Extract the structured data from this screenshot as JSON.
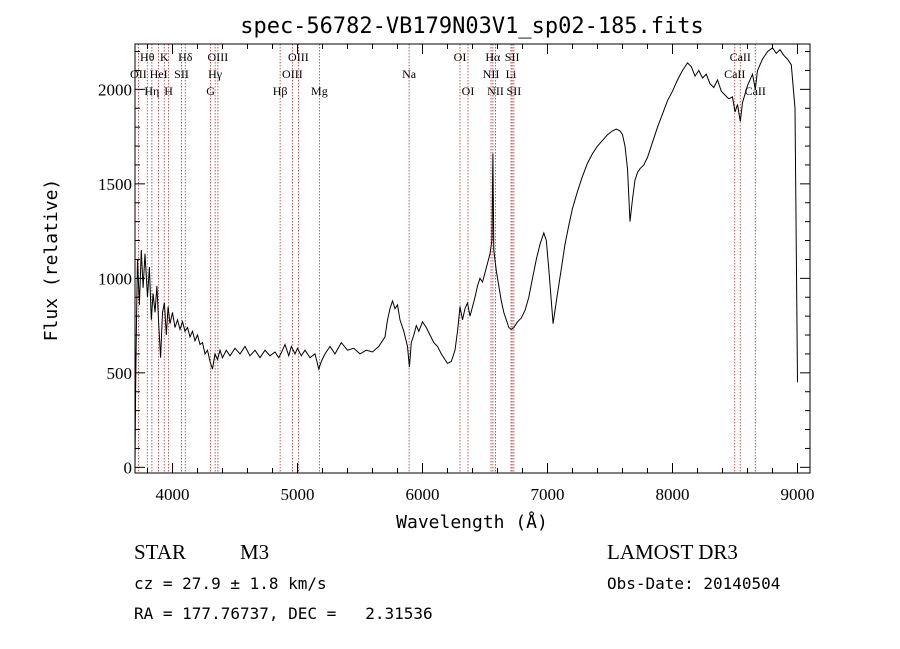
{
  "chart_data": {
    "type": "line",
    "title": "spec-56782-VB179N03V1_sp02-185.fits",
    "xlabel": "Wavelength (Å)",
    "ylabel": "Flux (relative)",
    "xlim": [
      3700,
      9100
    ],
    "ylim": [
      -30,
      2240
    ],
    "x_ticks": [
      4000,
      5000,
      6000,
      7000,
      8000,
      9000
    ],
    "y_ticks": [
      0,
      500,
      1000,
      1500,
      2000
    ],
    "grid": false,
    "series": [
      {
        "color": "#000000",
        "points": [
          [
            3700,
            0
          ],
          [
            3705,
            400
          ],
          [
            3712,
            780
          ],
          [
            3720,
            1100
          ],
          [
            3735,
            860
          ],
          [
            3750,
            1150
          ],
          [
            3765,
            950
          ],
          [
            3780,
            1130
          ],
          [
            3800,
            900
          ],
          [
            3815,
            1060
          ],
          [
            3830,
            780
          ],
          [
            3845,
            920
          ],
          [
            3860,
            820
          ],
          [
            3875,
            960
          ],
          [
            3890,
            750
          ],
          [
            3905,
            580
          ],
          [
            3920,
            820
          ],
          [
            3935,
            870
          ],
          [
            3950,
            700
          ],
          [
            3965,
            850
          ],
          [
            3980,
            760
          ],
          [
            4000,
            820
          ],
          [
            4020,
            740
          ],
          [
            4040,
            780
          ],
          [
            4060,
            730
          ],
          [
            4080,
            770
          ],
          [
            4100,
            720
          ],
          [
            4120,
            740
          ],
          [
            4140,
            690
          ],
          [
            4160,
            720
          ],
          [
            4180,
            670
          ],
          [
            4200,
            700
          ],
          [
            4220,
            650
          ],
          [
            4240,
            660
          ],
          [
            4260,
            600
          ],
          [
            4280,
            620
          ],
          [
            4300,
            560
          ],
          [
            4320,
            520
          ],
          [
            4340,
            600
          ],
          [
            4360,
            570
          ],
          [
            4380,
            620
          ],
          [
            4400,
            580
          ],
          [
            4430,
            620
          ],
          [
            4460,
            590
          ],
          [
            4500,
            630
          ],
          [
            4540,
            600
          ],
          [
            4580,
            640
          ],
          [
            4620,
            590
          ],
          [
            4660,
            620
          ],
          [
            4700,
            580
          ],
          [
            4740,
            620
          ],
          [
            4780,
            590
          ],
          [
            4820,
            610
          ],
          [
            4850,
            580
          ],
          [
            4880,
            620
          ],
          [
            4900,
            650
          ],
          [
            4930,
            590
          ],
          [
            4950,
            640
          ],
          [
            4980,
            600
          ],
          [
            5000,
            630
          ],
          [
            5030,
            590
          ],
          [
            5060,
            620
          ],
          [
            5100,
            580
          ],
          [
            5140,
            600
          ],
          [
            5170,
            520
          ],
          [
            5190,
            560
          ],
          [
            5220,
            600
          ],
          [
            5260,
            640
          ],
          [
            5300,
            600
          ],
          [
            5350,
            660
          ],
          [
            5400,
            620
          ],
          [
            5450,
            630
          ],
          [
            5500,
            600
          ],
          [
            5550,
            620
          ],
          [
            5600,
            610
          ],
          [
            5650,
            640
          ],
          [
            5700,
            690
          ],
          [
            5720,
            780
          ],
          [
            5740,
            840
          ],
          [
            5760,
            880
          ],
          [
            5780,
            840
          ],
          [
            5800,
            860
          ],
          [
            5820,
            780
          ],
          [
            5850,
            720
          ],
          [
            5880,
            640
          ],
          [
            5895,
            530
          ],
          [
            5910,
            660
          ],
          [
            5930,
            700
          ],
          [
            5950,
            750
          ],
          [
            5970,
            720
          ],
          [
            6000,
            770
          ],
          [
            6030,
            740
          ],
          [
            6060,
            700
          ],
          [
            6090,
            660
          ],
          [
            6120,
            640
          ],
          [
            6150,
            600
          ],
          [
            6180,
            570
          ],
          [
            6200,
            550
          ],
          [
            6230,
            560
          ],
          [
            6260,
            620
          ],
          [
            6280,
            720
          ],
          [
            6300,
            850
          ],
          [
            6320,
            780
          ],
          [
            6340,
            840
          ],
          [
            6360,
            870
          ],
          [
            6380,
            800
          ],
          [
            6400,
            850
          ],
          [
            6420,
            900
          ],
          [
            6440,
            960
          ],
          [
            6460,
            1000
          ],
          [
            6480,
            980
          ],
          [
            6500,
            1030
          ],
          [
            6520,
            1080
          ],
          [
            6540,
            1130
          ],
          [
            6555,
            1200
          ],
          [
            6563,
            1660
          ],
          [
            6570,
            1150
          ],
          [
            6590,
            1040
          ],
          [
            6610,
            960
          ],
          [
            6630,
            880
          ],
          [
            6650,
            820
          ],
          [
            6670,
            780
          ],
          [
            6690,
            740
          ],
          [
            6710,
            730
          ],
          [
            6730,
            740
          ],
          [
            6760,
            770
          ],
          [
            6790,
            790
          ],
          [
            6820,
            830
          ],
          [
            6850,
            900
          ],
          [
            6880,
            1000
          ],
          [
            6910,
            1100
          ],
          [
            6940,
            1180
          ],
          [
            6970,
            1240
          ],
          [
            6990,
            1200
          ],
          [
            7010,
            1050
          ],
          [
            7030,
            880
          ],
          [
            7045,
            760
          ],
          [
            7060,
            830
          ],
          [
            7080,
            920
          ],
          [
            7110,
            1050
          ],
          [
            7140,
            1180
          ],
          [
            7170,
            1280
          ],
          [
            7200,
            1370
          ],
          [
            7240,
            1460
          ],
          [
            7280,
            1540
          ],
          [
            7320,
            1610
          ],
          [
            7360,
            1660
          ],
          [
            7400,
            1700
          ],
          [
            7440,
            1730
          ],
          [
            7480,
            1760
          ],
          [
            7520,
            1780
          ],
          [
            7550,
            1790
          ],
          [
            7580,
            1780
          ],
          [
            7600,
            1760
          ],
          [
            7620,
            1700
          ],
          [
            7640,
            1580
          ],
          [
            7660,
            1300
          ],
          [
            7680,
            1420
          ],
          [
            7700,
            1520
          ],
          [
            7720,
            1560
          ],
          [
            7740,
            1580
          ],
          [
            7770,
            1600
          ],
          [
            7800,
            1640
          ],
          [
            7840,
            1720
          ],
          [
            7880,
            1800
          ],
          [
            7920,
            1870
          ],
          [
            7960,
            1940
          ],
          [
            8000,
            1990
          ],
          [
            8040,
            2050
          ],
          [
            8080,
            2100
          ],
          [
            8120,
            2140
          ],
          [
            8150,
            2120
          ],
          [
            8180,
            2070
          ],
          [
            8210,
            2100
          ],
          [
            8240,
            2060
          ],
          [
            8270,
            2080
          ],
          [
            8300,
            2030
          ],
          [
            8330,
            2010
          ],
          [
            8360,
            2050
          ],
          [
            8390,
            1990
          ],
          [
            8420,
            1970
          ],
          [
            8450,
            1950
          ],
          [
            8480,
            1960
          ],
          [
            8500,
            1880
          ],
          [
            8520,
            1920
          ],
          [
            8542,
            1830
          ],
          [
            8560,
            1930
          ],
          [
            8600,
            2020
          ],
          [
            8640,
            2080
          ],
          [
            8662,
            2000
          ],
          [
            8680,
            2100
          ],
          [
            8720,
            2160
          ],
          [
            8760,
            2200
          ],
          [
            8800,
            2220
          ],
          [
            8830,
            2190
          ],
          [
            8860,
            2210
          ],
          [
            8890,
            2180
          ],
          [
            8920,
            2160
          ],
          [
            8950,
            2130
          ],
          [
            8980,
            1900
          ],
          [
            9000,
            450
          ]
        ]
      }
    ],
    "spectral_lines": [
      {
        "label": "Hθ",
        "wavelength": 3798,
        "row": 1
      },
      {
        "label": "OII",
        "wavelength": 3727,
        "row": 2
      },
      {
        "label": "Hη",
        "wavelength": 3835,
        "row": 3
      },
      {
        "label": "K",
        "wavelength": 3934,
        "row": 1
      },
      {
        "label": "HeI",
        "wavelength": 3889,
        "row": 2
      },
      {
        "label": "H",
        "wavelength": 3969,
        "row": 3
      },
      {
        "label": "Hδ",
        "wavelength": 4102,
        "row": 1
      },
      {
        "label": "SII",
        "wavelength": 4072,
        "row": 2
      },
      {
        "label": "OIII",
        "wavelength": 4363,
        "row": 1
      },
      {
        "label": "Hγ",
        "wavelength": 4341,
        "row": 2
      },
      {
        "label": "G",
        "wavelength": 4305,
        "row": 3
      },
      {
        "label": "OIII",
        "wavelength": 5007,
        "row": 1
      },
      {
        "label": "OIII",
        "wavelength": 4959,
        "row": 2
      },
      {
        "label": "Hβ",
        "wavelength": 4861,
        "row": 3
      },
      {
        "label": "Mg",
        "wavelength": 5175,
        "row": 3
      },
      {
        "label": "Na",
        "wavelength": 5893,
        "row": 2
      },
      {
        "label": "OI",
        "wavelength": 6300,
        "row": 1
      },
      {
        "label": "OI",
        "wavelength": 6364,
        "row": 3
      },
      {
        "label": "Hα",
        "wavelength": 6563,
        "row": 1
      },
      {
        "label": "NII",
        "wavelength": 6548,
        "row": 2
      },
      {
        "label": "NII",
        "wavelength": 6584,
        "row": 3
      },
      {
        "label": "SII",
        "wavelength": 6717,
        "row": 1
      },
      {
        "label": "Li",
        "wavelength": 6708,
        "row": 2
      },
      {
        "label": "SII",
        "wavelength": 6731,
        "row": 3
      },
      {
        "label": "CaII",
        "wavelength": 8542,
        "row": 1
      },
      {
        "label": "CaII",
        "wavelength": 8498,
        "row": 2
      },
      {
        "label": "CaII",
        "wavelength": 8662,
        "row": 3
      }
    ],
    "line_color": "#b03030"
  },
  "footer": {
    "object_type": "STAR",
    "subclass": "M3",
    "survey": "LAMOST DR3",
    "redshift": "cz = 27.9 ± 1.8 km/s",
    "obs_date": "Obs-Date: 20140504",
    "coords": "RA = 177.76737, DEC =   2.31536"
  }
}
